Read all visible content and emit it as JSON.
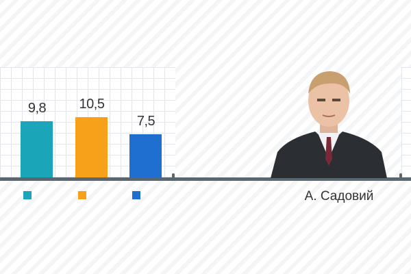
{
  "chart_data": {
    "type": "bar",
    "categories": [
      "",
      "",
      ""
    ],
    "values": [
      9.8,
      10.5,
      7.5
    ],
    "value_labels": [
      "9,8",
      "10,5",
      "7,5"
    ],
    "colors": [
      "#1aa6b8",
      "#f7a11a",
      "#1f6fd0"
    ],
    "ylim": [
      0,
      12
    ],
    "grid": true,
    "legend": "bottom"
  },
  "person": {
    "name": "А. Садовий"
  }
}
